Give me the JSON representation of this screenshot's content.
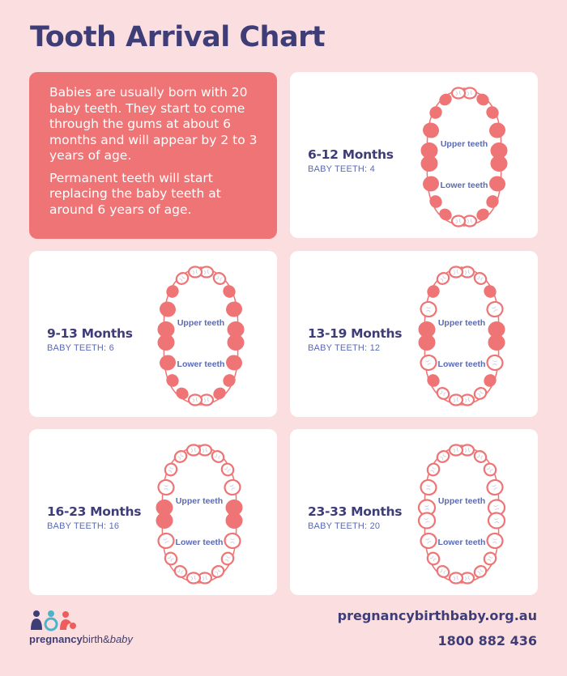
{
  "title": "Tooth Arrival Chart",
  "intro": {
    "p1": "Babies are usually born with 20 baby teeth. They start to come through the gums at about 6 months and will appear by 2 to 3 years of age.",
    "p2": "Permanent teeth will start replacing the baby teeth at around 6 years of age."
  },
  "upper_label": "Upper teeth",
  "lower_label": "Lower teeth",
  "stages": [
    {
      "months": "6-12 Months",
      "baby_teeth": "BABY TEETH: 4"
    },
    {
      "months": "9-13 Months",
      "baby_teeth": "BABY TEETH: 6"
    },
    {
      "months": "13-19 Months",
      "baby_teeth": "BABY TEETH: 12"
    },
    {
      "months": "16-23 Months",
      "baby_teeth": "BABY TEETH: 16"
    },
    {
      "months": "23-33 Months",
      "baby_teeth": "BABY TEETH: 20"
    }
  ],
  "footer": {
    "url": "pregnancybirthbaby.org.au",
    "phone": "1800 882 436",
    "logo_bold": "pregnancy",
    "logo_regular": "birth&",
    "logo_italic": "baby"
  },
  "colors": {
    "background": "#fbdfe0",
    "accent": "#ef7475",
    "navy": "#3f3d78",
    "label_blue": "#5a6ab4"
  }
}
